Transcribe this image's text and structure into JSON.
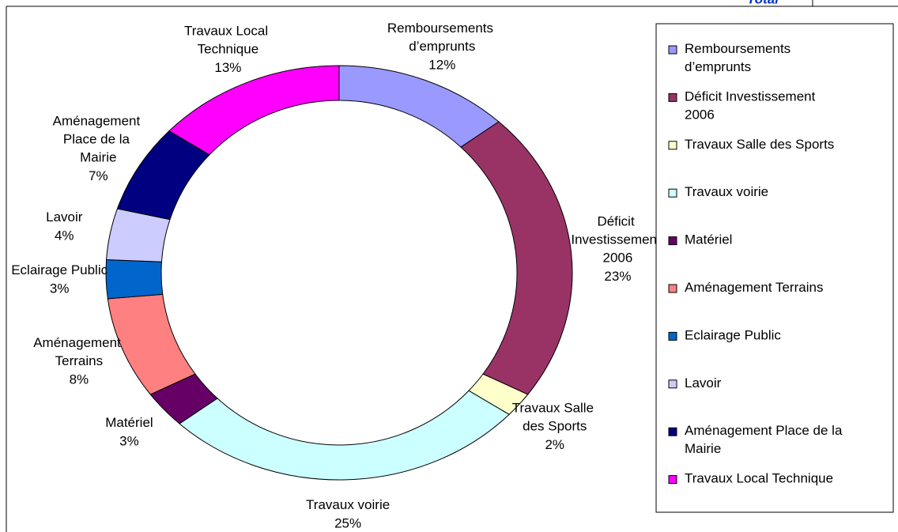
{
  "field_button": "Total",
  "chart_data": {
    "type": "donut",
    "categories": [
      "Remboursements d’emprunts",
      "Déficit Investissement 2006",
      "Travaux Salle des Sports",
      "Travaux voirie",
      "Matériel",
      "Aménagement Terrains",
      "Eclairage Public",
      "Lavoir",
      "Aménagement Place de la Mairie",
      "Travaux Local Technique"
    ],
    "values": [
      12,
      23,
      2,
      25,
      3,
      8,
      3,
      4,
      7,
      13
    ],
    "value_labels": [
      "12%",
      "23%",
      "2%",
      "25%",
      "3%",
      "8%",
      "3%",
      "4%",
      "7%",
      "13%"
    ],
    "colors": [
      "#9999ff",
      "#993366",
      "#ffffcc",
      "#ccffff",
      "#660066",
      "#ff8080",
      "#0066cc",
      "#ccccff",
      "#000080",
      "#ff00ff"
    ],
    "legend": "right"
  }
}
